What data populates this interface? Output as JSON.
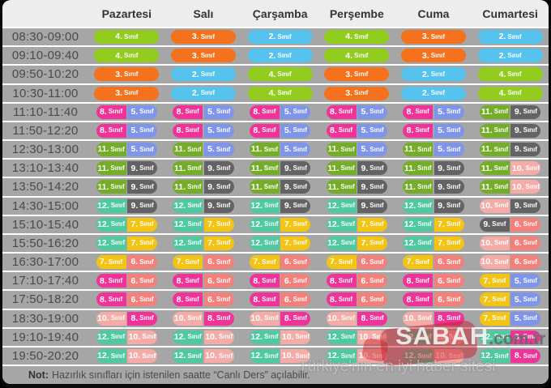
{
  "table": {
    "days": [
      "Pazartesi",
      "Salı",
      "Çarşamba",
      "Perşembe",
      "Cuma",
      "Cumartesi"
    ],
    "pill_suffix": "Sınıf",
    "grade_colors": {
      "2": "#55c3ee",
      "3": "#f4711d",
      "4": "#91cc1e",
      "5": "#7e95ea",
      "6": "#f4807b",
      "7": "#f4c414",
      "8": "#ef3399",
      "9": "#636366",
      "10": "#f5aca7",
      "11": "#74ad27",
      "12": "#4fc9a0"
    },
    "rows": [
      {
        "time": "08:30-09:00",
        "cells": [
          [
            4
          ],
          [
            3
          ],
          [
            2
          ],
          [
            4
          ],
          [
            3
          ],
          [
            2
          ]
        ]
      },
      {
        "time": "09:10-09:40",
        "cells": [
          [
            4
          ],
          [
            3
          ],
          [
            2
          ],
          [
            4
          ],
          [
            3
          ],
          [
            2
          ]
        ]
      },
      {
        "time": "09:50-10:20",
        "cells": [
          [
            3
          ],
          [
            2
          ],
          [
            4
          ],
          [
            3
          ],
          [
            2
          ],
          [
            4
          ]
        ]
      },
      {
        "time": "10:30-11:00",
        "cells": [
          [
            3
          ],
          [
            2
          ],
          [
            4
          ],
          [
            3
          ],
          [
            2
          ],
          [
            4
          ]
        ]
      },
      {
        "time": "11:10-11:40",
        "cells": [
          [
            8,
            5
          ],
          [
            8,
            5
          ],
          [
            8,
            5
          ],
          [
            8,
            5
          ],
          [
            8,
            5
          ],
          [
            11,
            9
          ]
        ]
      },
      {
        "time": "11:50-12:20",
        "cells": [
          [
            8,
            5
          ],
          [
            8,
            5
          ],
          [
            8,
            5
          ],
          [
            8,
            5
          ],
          [
            8,
            5
          ],
          [
            11,
            9
          ]
        ]
      },
      {
        "time": "12:30-13:00",
        "cells": [
          [
            11,
            5
          ],
          [
            11,
            5
          ],
          [
            11,
            5
          ],
          [
            11,
            5
          ],
          [
            11,
            5
          ],
          [
            11,
            9
          ]
        ]
      },
      {
        "time": "13:10-13:40",
        "cells": [
          [
            11,
            9
          ],
          [
            11,
            9
          ],
          [
            11,
            9
          ],
          [
            11,
            9
          ],
          [
            11,
            9
          ],
          [
            11,
            10
          ]
        ]
      },
      {
        "time": "13:50-14:20",
        "cells": [
          [
            11,
            9
          ],
          [
            11,
            9
          ],
          [
            11,
            9
          ],
          [
            11,
            9
          ],
          [
            11,
            9
          ],
          [
            11,
            10
          ]
        ]
      },
      {
        "time": "14:30-15:00",
        "cells": [
          [
            12,
            9
          ],
          [
            12,
            9
          ],
          [
            12,
            9
          ],
          [
            12,
            9
          ],
          [
            12,
            9
          ],
          [
            10,
            9
          ]
        ]
      },
      {
        "time": "15:10-15:40",
        "cells": [
          [
            12,
            7
          ],
          [
            12,
            7
          ],
          [
            12,
            7
          ],
          [
            12,
            7
          ],
          [
            12,
            7
          ],
          [
            9,
            6
          ]
        ]
      },
      {
        "time": "15:50-16:20",
        "cells": [
          [
            12,
            7
          ],
          [
            12,
            7
          ],
          [
            12,
            7
          ],
          [
            12,
            7
          ],
          [
            12,
            7
          ],
          [
            10,
            6
          ]
        ]
      },
      {
        "time": "16:30-17:00",
        "cells": [
          [
            7,
            6
          ],
          [
            7,
            6
          ],
          [
            7,
            6
          ],
          [
            7,
            6
          ],
          [
            7,
            6
          ],
          [
            10,
            6
          ]
        ]
      },
      {
        "time": "17:10-17:40",
        "cells": [
          [
            8,
            6
          ],
          [
            8,
            6
          ],
          [
            8,
            6
          ],
          [
            8,
            6
          ],
          [
            8,
            6
          ],
          [
            7,
            5
          ]
        ]
      },
      {
        "time": "17:50-18:20",
        "cells": [
          [
            8,
            6
          ],
          [
            8,
            6
          ],
          [
            8,
            6
          ],
          [
            8,
            6
          ],
          [
            8,
            6
          ],
          [
            7,
            5
          ]
        ]
      },
      {
        "time": "18:30-19:00",
        "cells": [
          [
            10,
            8
          ],
          [
            10,
            8
          ],
          [
            10,
            8
          ],
          [
            10,
            8
          ],
          [
            10,
            8
          ],
          [
            7,
            5
          ]
        ]
      },
      {
        "time": "19:10-19:40",
        "cells": [
          [
            12,
            10
          ],
          [
            12,
            10
          ],
          [
            12,
            10
          ],
          [
            12,
            10
          ],
          [
            12,
            10
          ],
          [
            12,
            8
          ]
        ]
      },
      {
        "time": "19:50-20:20",
        "cells": [
          [
            12,
            10
          ],
          [
            12,
            10
          ],
          [
            12,
            10
          ],
          [
            12,
            10
          ],
          [
            12,
            10
          ],
          [
            12,
            8
          ]
        ]
      }
    ]
  },
  "note": {
    "label": "Not:",
    "text": "Hazırlık sınıfları için istenilen saatte “Canlı Ders” açılabilir."
  },
  "watermark": {
    "brand": "SABAH",
    "domain": ".com.tr",
    "tagline": "Türkiye'nin en iyi haber sitesi"
  }
}
